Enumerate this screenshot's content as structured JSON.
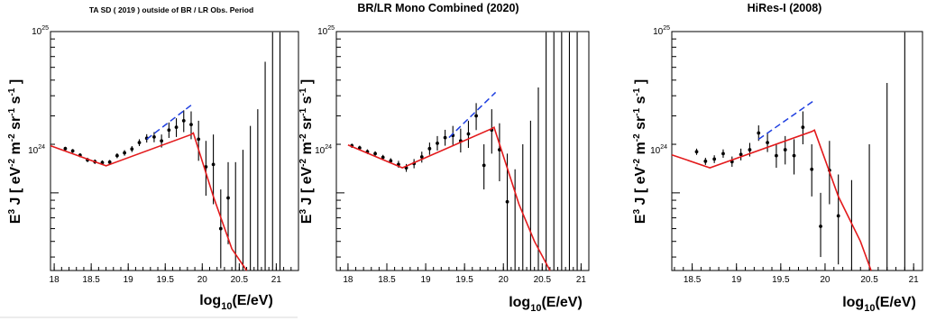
{
  "colors": {
    "fit": "#e31a1c",
    "extrapolation": "#1f3fe0",
    "data": "#000000",
    "frame": "#000000"
  },
  "chart_data": [
    {
      "type": "scatter",
      "title": "TA SD ( 2019 ) outside of BR / LR Obs. Period",
      "ylabel": "E3 J [ eV-2 m-2 sr-1 s-1 ]",
      "xlabel": "log10(E/eV)",
      "xlim": [
        17.95,
        21.3
      ],
      "ylim": [
        3.3e+23,
        1e+25
      ],
      "yscale": "log",
      "xticks": [
        "18",
        "18.5",
        "19",
        "19.5",
        "20",
        "20.5",
        "21"
      ],
      "yticklabels": [
        "10^24",
        "10^25"
      ],
      "series": [
        {
          "kind": "points",
          "points": [
            {
              "x": 18.15,
              "y": 1.88e+24,
              "lo": 1.83e+24,
              "hi": 1.93e+24
            },
            {
              "x": 18.25,
              "y": 1.82e+24,
              "lo": 1.77e+24,
              "hi": 1.87e+24
            },
            {
              "x": 18.35,
              "y": 1.71e+24,
              "lo": 1.66e+24,
              "hi": 1.76e+24
            },
            {
              "x": 18.45,
              "y": 1.6e+24,
              "lo": 1.55e+24,
              "hi": 1.65e+24
            },
            {
              "x": 18.55,
              "y": 1.56e+24,
              "lo": 1.51e+24,
              "hi": 1.61e+24
            },
            {
              "x": 18.65,
              "y": 1.54e+24,
              "lo": 1.49e+24,
              "hi": 1.59e+24
            },
            {
              "x": 18.75,
              "y": 1.55e+24,
              "lo": 1.5e+24,
              "hi": 1.6e+24
            },
            {
              "x": 18.85,
              "y": 1.7e+24,
              "lo": 1.64e+24,
              "hi": 1.76e+24
            },
            {
              "x": 18.95,
              "y": 1.77e+24,
              "lo": 1.7e+24,
              "hi": 1.84e+24
            },
            {
              "x": 19.05,
              "y": 1.87e+24,
              "lo": 1.79e+24,
              "hi": 1.95e+24
            },
            {
              "x": 19.15,
              "y": 2.05e+24,
              "lo": 1.95e+24,
              "hi": 2.15e+24
            },
            {
              "x": 19.25,
              "y": 2.18e+24,
              "lo": 2.05e+24,
              "hi": 2.31e+24
            },
            {
              "x": 19.35,
              "y": 2.22e+24,
              "lo": 2.06e+24,
              "hi": 2.38e+24
            },
            {
              "x": 19.45,
              "y": 2.1e+24,
              "lo": 1.91e+24,
              "hi": 2.3e+24
            },
            {
              "x": 19.55,
              "y": 2.45e+24,
              "lo": 2.19e+24,
              "hi": 2.73e+24
            },
            {
              "x": 19.65,
              "y": 2.55e+24,
              "lo": 2.22e+24,
              "hi": 2.9e+24
            },
            {
              "x": 19.75,
              "y": 2.8e+24,
              "lo": 2.38e+24,
              "hi": 3.25e+24
            },
            {
              "x": 19.85,
              "y": 2.65e+24,
              "lo": 2.15e+24,
              "hi": 3.2e+24
            },
            {
              "x": 19.95,
              "y": 2.15e+24,
              "lo": 1.58e+24,
              "hi": 2.8e+24
            },
            {
              "x": 20.05,
              "y": 1.45e+24,
              "lo": 9.6e+23,
              "hi": 2.1e+24
            },
            {
              "x": 20.15,
              "y": 1.5e+24,
              "lo": 8.5e+23,
              "hi": 2.3e+24
            },
            {
              "x": 20.25,
              "y": 6e+23,
              "lo": 3.4e+23,
              "hi": 1.05e+24
            },
            {
              "x": 20.35,
              "y": 9.3e+23,
              "lo": 4.8e+23,
              "hi": 1.55e+24
            }
          ]
        },
        {
          "kind": "upper-limits",
          "points": [
            {
              "x": 20.45,
              "hi": 1.55e+24
            },
            {
              "x": 20.55,
              "hi": 1.85e+24
            },
            {
              "x": 20.65,
              "hi": 2.6e+24
            },
            {
              "x": 20.75,
              "hi": 3.3e+24
            },
            {
              "x": 20.85,
              "hi": 6.5e+24
            },
            {
              "x": 20.95,
              "hi": 9.9e+24
            },
            {
              "x": 21.05,
              "hi": 9.9e+24
            }
          ]
        },
        {
          "kind": "fit-line",
          "points": [
            [
              17.95,
              1.96e+24
            ],
            [
              18.7,
              1.47e+24
            ],
            [
              19.85,
              2.3e+24
            ],
            [
              19.88,
              2.35e+24
            ],
            [
              20.15,
              9.5e+23
            ],
            [
              20.4,
              4.5e+23
            ],
            [
              20.6,
              3.3e+23
            ]
          ]
        },
        {
          "kind": "extrapolation",
          "points": [
            [
              19.25,
              2.15e+24
            ],
            [
              19.85,
              3.5e+24
            ]
          ]
        }
      ]
    },
    {
      "type": "scatter",
      "title": "BR/LR Mono Combined (2020)",
      "ylabel": "E3 J [ eV-2 m-2 sr-1 s-1 ]",
      "xlabel": "log10(E/eV)",
      "xlim": [
        17.85,
        21.1
      ],
      "ylim": [
        3.3e+23,
        1e+25
      ],
      "yscale": "log",
      "xticks": [
        "18",
        "18.5",
        "19",
        "19.5",
        "20",
        "20.5",
        "21"
      ],
      "yticklabels": [
        "10^24",
        "10^25"
      ],
      "series": [
        {
          "kind": "points",
          "points": [
            {
              "x": 18.05,
              "y": 1.96e+24,
              "lo": 1.9e+24,
              "hi": 2.02e+24
            },
            {
              "x": 18.15,
              "y": 1.9e+24,
              "lo": 1.84e+24,
              "hi": 1.96e+24
            },
            {
              "x": 18.25,
              "y": 1.8e+24,
              "lo": 1.74e+24,
              "hi": 1.86e+24
            },
            {
              "x": 18.35,
              "y": 1.75e+24,
              "lo": 1.69e+24,
              "hi": 1.81e+24
            },
            {
              "x": 18.45,
              "y": 1.66e+24,
              "lo": 1.6e+24,
              "hi": 1.72e+24
            },
            {
              "x": 18.55,
              "y": 1.58e+24,
              "lo": 1.52e+24,
              "hi": 1.64e+24
            },
            {
              "x": 18.65,
              "y": 1.5e+24,
              "lo": 1.43e+24,
              "hi": 1.58e+24
            },
            {
              "x": 18.75,
              "y": 1.43e+24,
              "lo": 1.35e+24,
              "hi": 1.51e+24
            },
            {
              "x": 18.85,
              "y": 1.52e+24,
              "lo": 1.42e+24,
              "hi": 1.62e+24
            },
            {
              "x": 18.95,
              "y": 1.67e+24,
              "lo": 1.54e+24,
              "hi": 1.8e+24
            },
            {
              "x": 19.05,
              "y": 1.88e+24,
              "lo": 1.72e+24,
              "hi": 2.05e+24
            },
            {
              "x": 19.15,
              "y": 2.03e+24,
              "lo": 1.83e+24,
              "hi": 2.25e+24
            },
            {
              "x": 19.25,
              "y": 2.2e+24,
              "lo": 1.96e+24,
              "hi": 2.46e+24
            },
            {
              "x": 19.35,
              "y": 2.27e+24,
              "lo": 1.98e+24,
              "hi": 2.6e+24
            },
            {
              "x": 19.45,
              "y": 2.1e+24,
              "lo": 1.78e+24,
              "hi": 2.5e+24
            },
            {
              "x": 19.55,
              "y": 2.32e+24,
              "lo": 1.9e+24,
              "hi": 2.8e+24
            },
            {
              "x": 19.65,
              "y": 3e+24,
              "lo": 2.45e+24,
              "hi": 3.6e+24
            },
            {
              "x": 19.75,
              "y": 1.48e+24,
              "lo": 1.05e+24,
              "hi": 2e+24
            },
            {
              "x": 19.85,
              "y": 2.45e+24,
              "lo": 1.75e+24,
              "hi": 3.3e+24
            },
            {
              "x": 19.95,
              "y": 1.85e+24,
              "lo": 1.18e+24,
              "hi": 2.7e+24
            },
            {
              "x": 20.05,
              "y": 8.8e+23,
              "lo": 3.3e+23,
              "hi": 1.75e+24
            }
          ]
        },
        {
          "kind": "upper-limits",
          "points": [
            {
              "x": 20.15,
              "hi": 1.4e+24
            },
            {
              "x": 20.25,
              "hi": 2e+24
            },
            {
              "x": 20.35,
              "hi": 2.8e+24
            },
            {
              "x": 20.45,
              "hi": 4.5e+24
            },
            {
              "x": 20.55,
              "hi": 9.9e+24
            },
            {
              "x": 20.65,
              "hi": 9.9e+24
            },
            {
              "x": 20.75,
              "hi": 9.9e+24
            },
            {
              "x": 20.85,
              "hi": 9.9e+24
            },
            {
              "x": 20.95,
              "hi": 9.9e+24
            }
          ]
        },
        {
          "kind": "fit-line",
          "points": [
            [
              18.0,
              1.98e+24
            ],
            [
              18.7,
              1.43e+24
            ],
            [
              19.85,
              2.5e+24
            ],
            [
              19.88,
              2.55e+24
            ],
            [
              20.2,
              8.5e+23
            ],
            [
              20.4,
              5e+23
            ],
            [
              20.6,
              3.3e+23
            ]
          ]
        },
        {
          "kind": "extrapolation",
          "points": [
            [
              19.3,
              2.2e+24
            ],
            [
              19.9,
              4.2e+24
            ]
          ]
        }
      ]
    },
    {
      "type": "scatter",
      "title": "HiRes-I (2008)",
      "ylabel": "E3 J [ eV-2 m-2 sr-1 s-1 ]",
      "xlabel": "log10(E/eV)",
      "xlim": [
        18.27,
        21.1
      ],
      "ylim": [
        3.3e+23,
        1e+25
      ],
      "yscale": "log",
      "xticks": [
        "18.5",
        "19",
        "19.5",
        "20",
        "20.5",
        "21"
      ],
      "yticklabels": [
        "10^24",
        "10^25"
      ],
      "series": [
        {
          "kind": "points",
          "points": [
            {
              "x": 18.55,
              "y": 1.8e+24,
              "lo": 1.72e+24,
              "hi": 1.88e+24
            },
            {
              "x": 18.65,
              "y": 1.57e+24,
              "lo": 1.49e+24,
              "hi": 1.65e+24
            },
            {
              "x": 18.75,
              "y": 1.62e+24,
              "lo": 1.53e+24,
              "hi": 1.71e+24
            },
            {
              "x": 18.85,
              "y": 1.75e+24,
              "lo": 1.65e+24,
              "hi": 1.86e+24
            },
            {
              "x": 18.95,
              "y": 1.56e+24,
              "lo": 1.45e+24,
              "hi": 1.68e+24
            },
            {
              "x": 19.05,
              "y": 1.73e+24,
              "lo": 1.59e+24,
              "hi": 1.88e+24
            },
            {
              "x": 19.15,
              "y": 1.85e+24,
              "lo": 1.68e+24,
              "hi": 2.04e+24
            },
            {
              "x": 19.25,
              "y": 2.35e+24,
              "lo": 2.1e+24,
              "hi": 2.62e+24
            },
            {
              "x": 19.35,
              "y": 2.05e+24,
              "lo": 1.79e+24,
              "hi": 2.35e+24
            },
            {
              "x": 19.45,
              "y": 1.7e+24,
              "lo": 1.43e+24,
              "hi": 2e+24
            },
            {
              "x": 19.55,
              "y": 1.85e+24,
              "lo": 1.5e+24,
              "hi": 2.25e+24
            },
            {
              "x": 19.65,
              "y": 1.7e+24,
              "lo": 1.3e+24,
              "hi": 2.15e+24
            },
            {
              "x": 19.75,
              "y": 2.55e+24,
              "lo": 2e+24,
              "hi": 3.2e+24
            },
            {
              "x": 19.85,
              "y": 1.4e+24,
              "lo": 9.5e+23,
              "hi": 2e+24
            },
            {
              "x": 19.95,
              "y": 6.2e+23,
              "lo": 4e+23,
              "hi": 1e+24
            },
            {
              "x": 20.05,
              "y": 1.38e+24,
              "lo": 8.5e+23,
              "hi": 2.1e+24
            },
            {
              "x": 20.15,
              "y": 7.2e+23,
              "lo": 3.6e+23,
              "hi": 1.3e+24
            }
          ]
        },
        {
          "kind": "upper-limits",
          "points": [
            {
              "x": 20.3,
              "hi": 1.2e+24
            },
            {
              "x": 20.5,
              "hi": 2e+24
            },
            {
              "x": 20.7,
              "hi": 4.8e+24
            },
            {
              "x": 20.9,
              "hi": 9.9e+24
            }
          ]
        },
        {
          "kind": "fit-line",
          "points": [
            [
              18.27,
              1.72e+24
            ],
            [
              18.7,
              1.43e+24
            ],
            [
              19.85,
              2.4e+24
            ],
            [
              19.88,
              2.45e+24
            ],
            [
              20.15,
              9.5e+23
            ],
            [
              20.4,
              5e+23
            ],
            [
              20.52,
              3.3e+23
            ]
          ]
        },
        {
          "kind": "extrapolation",
          "points": [
            [
              19.25,
              2.15e+24
            ],
            [
              19.88,
              3.75e+24
            ]
          ]
        }
      ]
    }
  ]
}
